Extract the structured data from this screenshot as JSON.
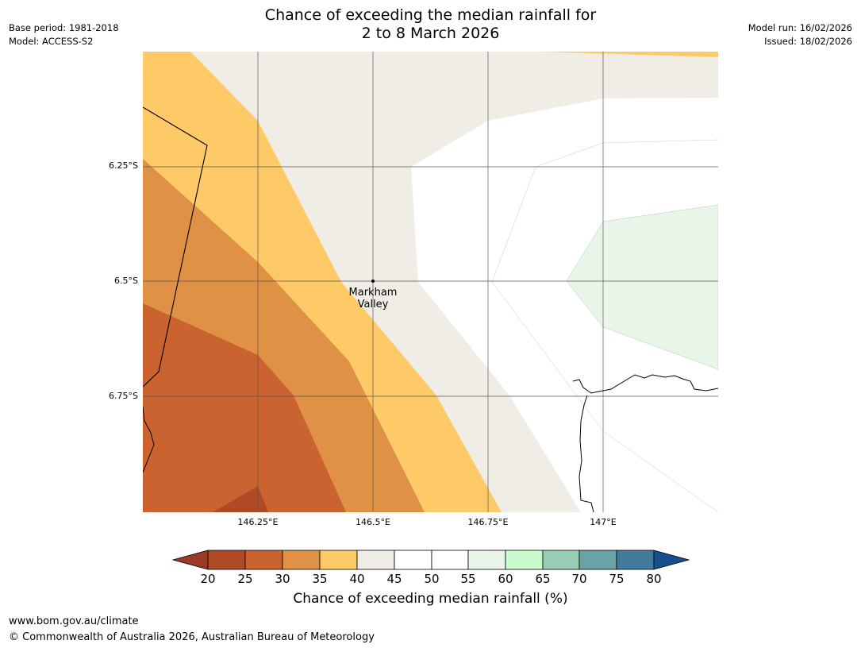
{
  "title": {
    "line1": "Chance of exceeding the median rainfall for",
    "line2": "2 to 8 March 2026"
  },
  "meta_left": {
    "base_period": "Base period: 1981-2018",
    "model": "Model: ACCESS-S2"
  },
  "meta_right": {
    "model_run": "Model run: 16/02/2026",
    "issued": "Issued: 18/02/2026"
  },
  "axes": {
    "lat_ticks": [
      "6.25°S",
      "6.5°S",
      "6.75°S"
    ],
    "lon_ticks": [
      "146.25°E",
      "146.5°E",
      "146.75°E",
      "147°E"
    ]
  },
  "place": {
    "line1": "Markham",
    "line2": "Valley"
  },
  "colorbar": {
    "label": "Chance of exceeding median rainfall (%)",
    "ticks": [
      "20",
      "25",
      "30",
      "35",
      "40",
      "45",
      "50",
      "55",
      "60",
      "65",
      "70",
      "75",
      "80"
    ],
    "colors": {
      "below20": "#9b3b26",
      "20-25": "#b04a26",
      "25-30": "#cb6330",
      "30-35": "#df9146",
      "35-40": "#feca67",
      "40-45": "#f0ece6",
      "45-50": "#ffffff",
      "50-55": "#ffffff",
      "55-60": "#eaf5ea",
      "60-65": "#c8fccc",
      "65-70": "#9acdb6",
      "70-75": "#6aa3a5",
      "75-80": "#417a9b",
      "above80": "#164f8b"
    }
  },
  "footer": {
    "url": "www.bom.gov.au/climate",
    "copyright": "© Commonwealth of Australia 2026, Australian Bureau of Meteorology"
  }
}
